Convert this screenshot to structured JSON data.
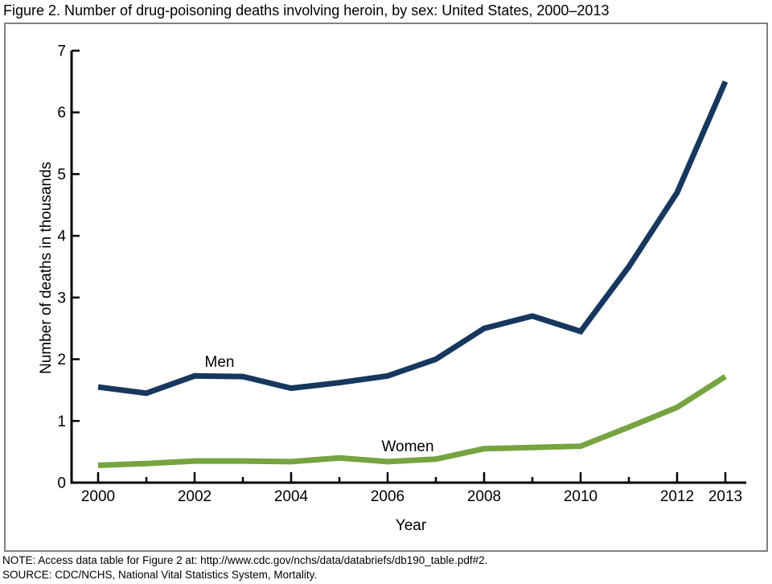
{
  "title": "Figure 2. Number of drug-poisoning deaths involving heroin, by sex: United States, 2000–2013",
  "chart_data": {
    "type": "line",
    "x": [
      2000,
      2001,
      2002,
      2003,
      2004,
      2005,
      2006,
      2007,
      2008,
      2009,
      2010,
      2011,
      2012,
      2013
    ],
    "series": [
      {
        "name": "Men",
        "color": "#17375e",
        "values": [
          1.55,
          1.45,
          1.73,
          1.72,
          1.53,
          1.62,
          1.73,
          2.0,
          2.5,
          2.7,
          2.45,
          3.5,
          4.7,
          6.5
        ]
      },
      {
        "name": "Women",
        "color": "#76a440",
        "values": [
          0.28,
          0.31,
          0.35,
          0.35,
          0.34,
          0.4,
          0.34,
          0.38,
          0.55,
          0.57,
          0.59,
          0.9,
          1.22,
          1.72
        ]
      }
    ],
    "xlabel": "Year",
    "ylabel": "Number of deaths in thousands",
    "ylim": [
      0,
      7
    ],
    "yticks": [
      0,
      1,
      2,
      3,
      4,
      5,
      6,
      7
    ],
    "xtick_labels": [
      2000,
      2002,
      2004,
      2006,
      2008,
      2010,
      2012,
      2013
    ],
    "grid": false,
    "legend": "inline-series-labels",
    "axis_color": "#000000",
    "frame_color": "#808080"
  },
  "notes": {
    "note": "NOTE: Access data table for Figure 2 at: http://www.cdc.gov/nchs/data/databriefs/db190_table.pdf#2.",
    "source": "SOURCE: CDC/NCHS, National Vital Statistics System, Mortality."
  }
}
